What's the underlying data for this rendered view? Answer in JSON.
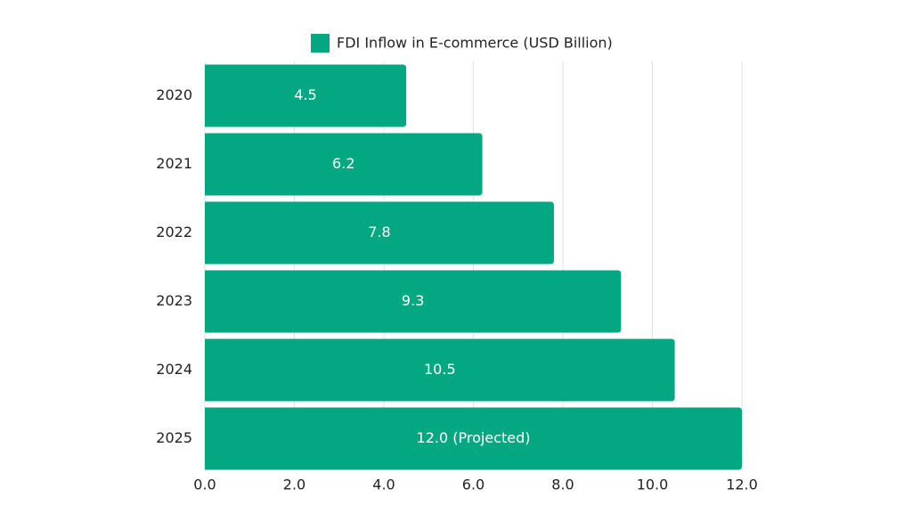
{
  "chart_data": {
    "type": "bar",
    "orientation": "horizontal",
    "categories": [
      "2020",
      "2021",
      "2022",
      "2023",
      "2024",
      "2025"
    ],
    "series": [
      {
        "name": "FDI Inflow in E-commerce (USD Billion)",
        "color": "#03a882",
        "values": [
          4.5,
          6.2,
          7.8,
          9.3,
          10.5,
          12.0
        ],
        "value_labels": [
          "4.5",
          "6.2",
          "7.8",
          "9.3",
          "10.5",
          "12.0 (Projected)"
        ]
      }
    ],
    "xlim": [
      0,
      12
    ],
    "xticks": [
      {
        "value": 0,
        "label": "0.0"
      },
      {
        "value": 2,
        "label": "2.0"
      },
      {
        "value": 4,
        "label": "4.0"
      },
      {
        "value": 6,
        "label": "6.0"
      },
      {
        "value": 8,
        "label": "8.0"
      },
      {
        "value": 10,
        "label": "10.0"
      },
      {
        "value": 12,
        "label": "12.0"
      }
    ],
    "grid": true,
    "legend": "top"
  }
}
